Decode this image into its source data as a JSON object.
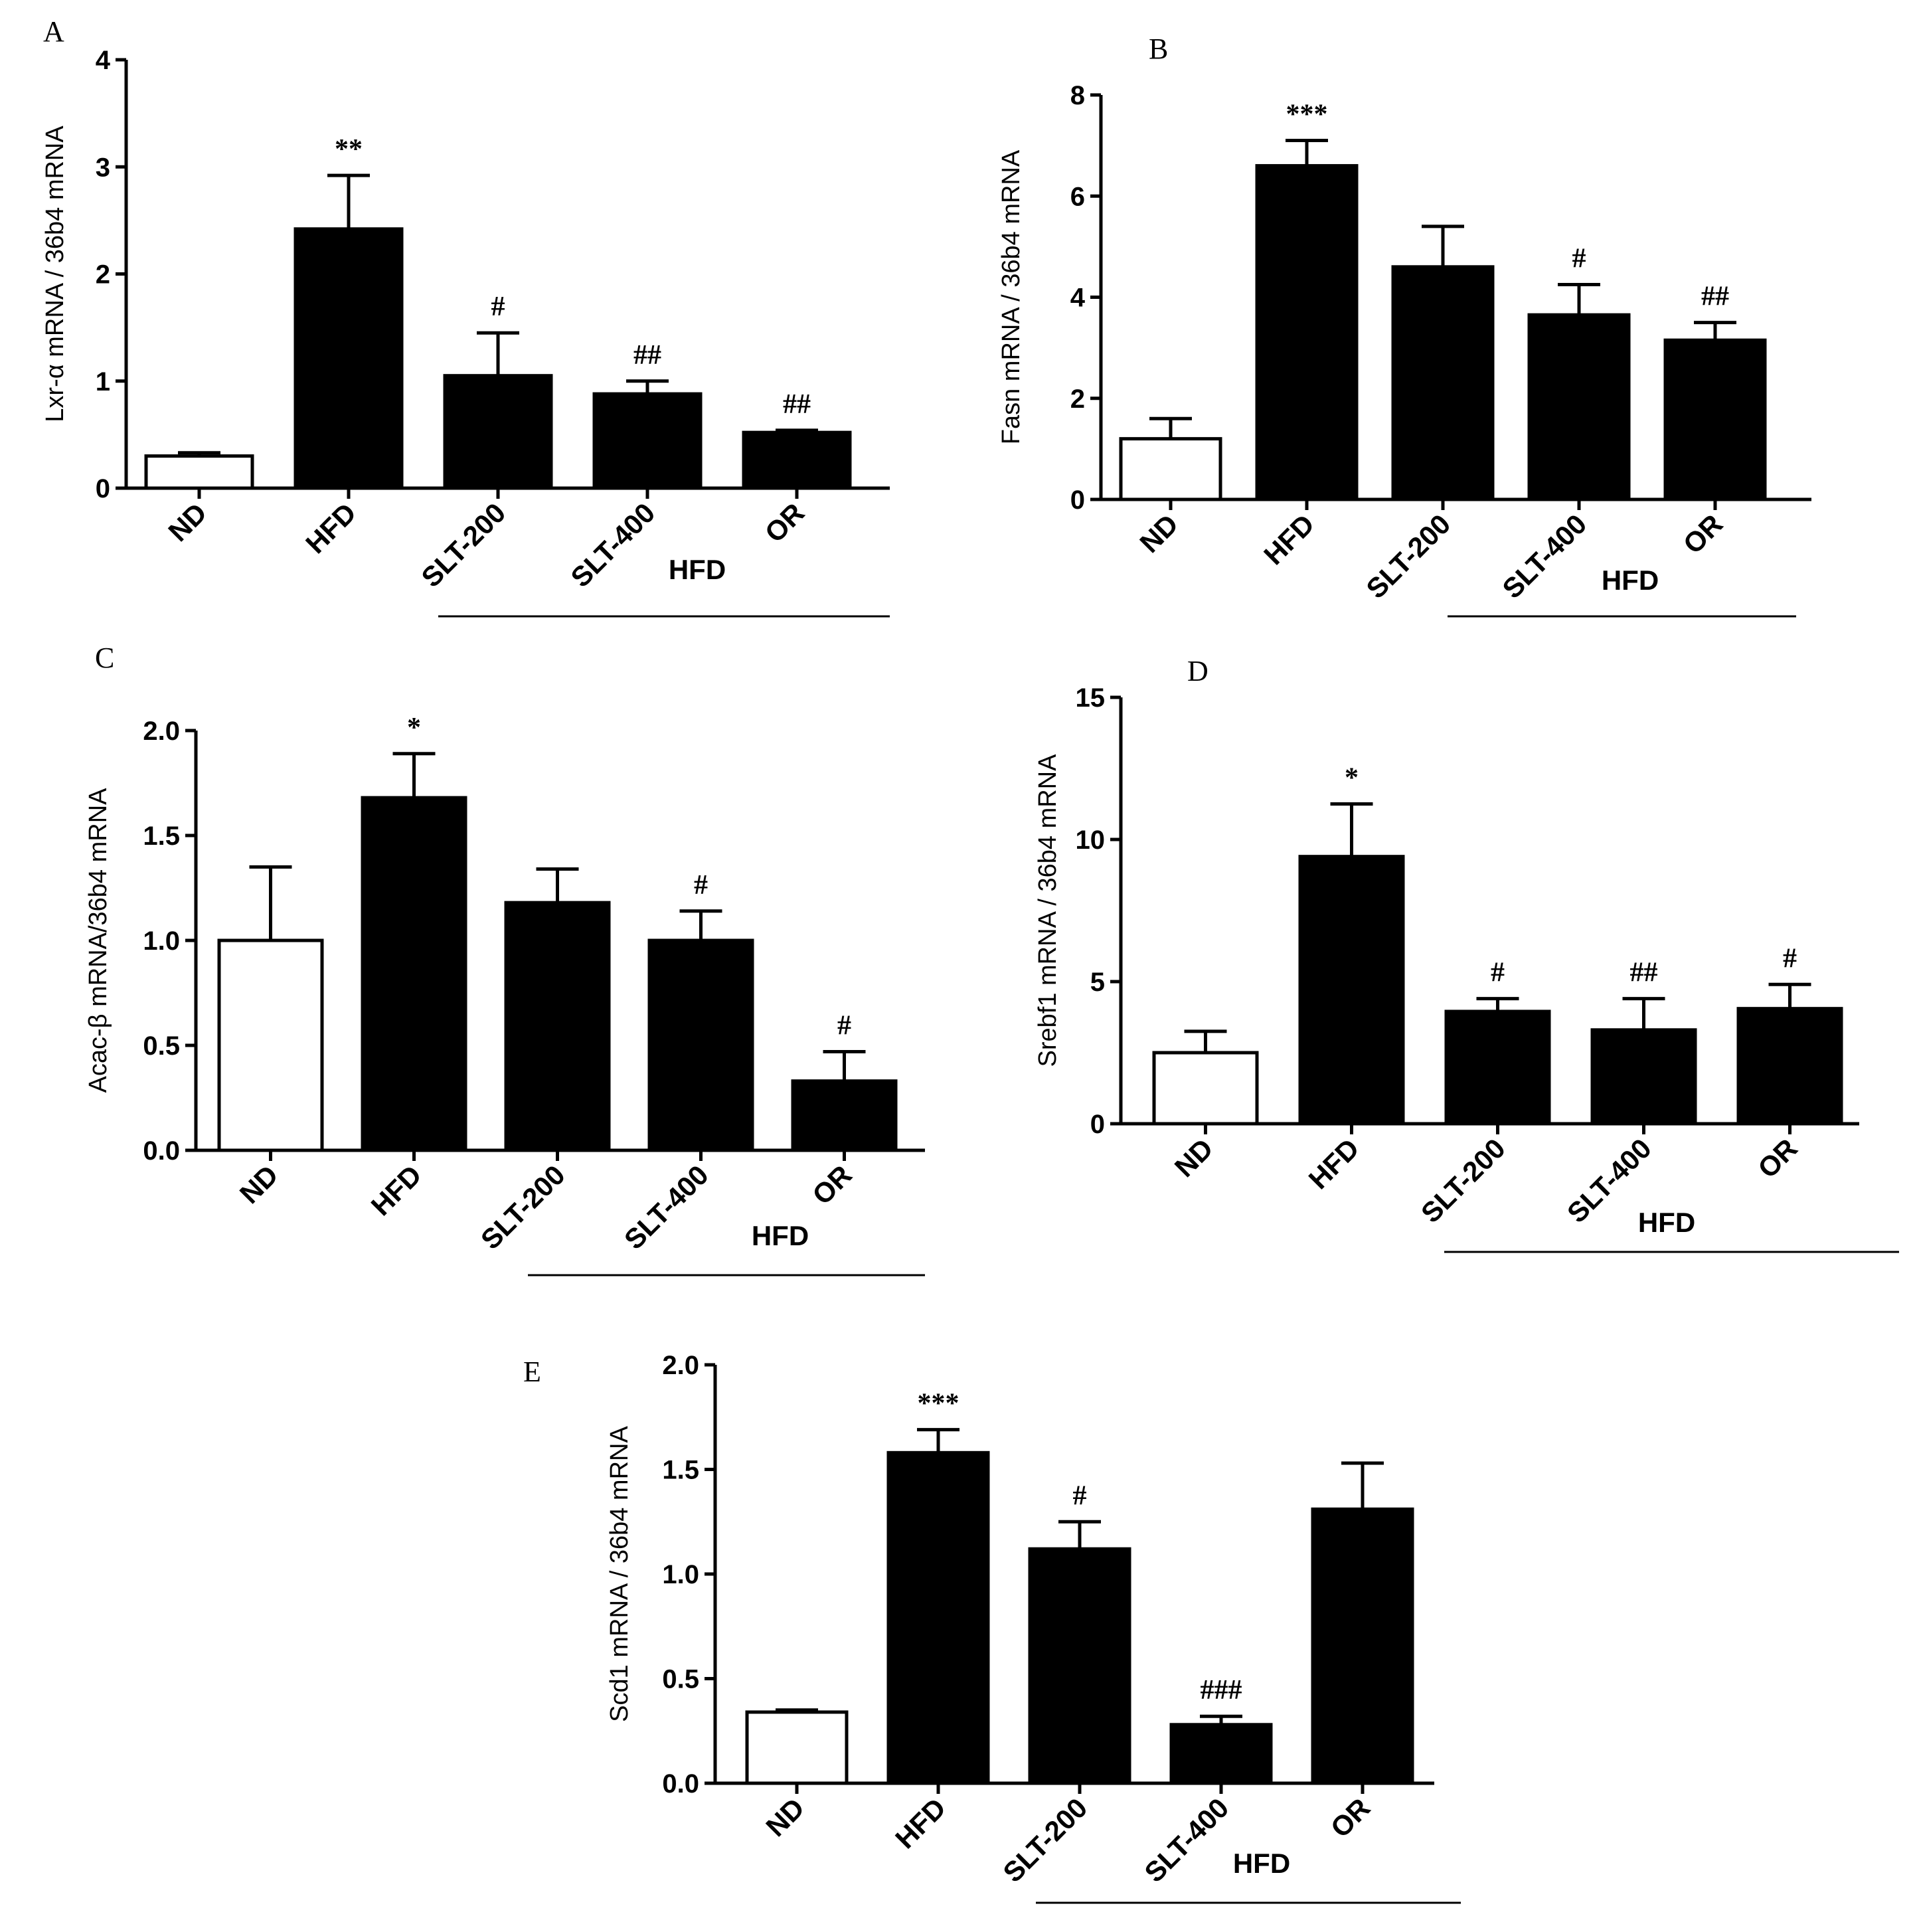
{
  "chart_data": [
    {
      "panel": "A",
      "type": "bar",
      "categories": [
        "ND",
        "HFD",
        "SLT-200",
        "SLT-400",
        "OR"
      ],
      "values": [
        0.3,
        2.42,
        1.05,
        0.88,
        0.52
      ],
      "errors": [
        0.03,
        0.5,
        0.4,
        0.12,
        0.02
      ],
      "significance": [
        "",
        "**",
        "#",
        "##",
        "##"
      ],
      "fills": [
        "#ffffff",
        "#000000",
        "#000000",
        "#000000",
        "#000000"
      ],
      "ylabel": "Lxr-α mRNA / 36b4 mRNA",
      "ylim": [
        0,
        4
      ],
      "yticks": [
        0,
        1,
        2,
        3,
        4
      ],
      "ytick_labels": [
        "0",
        "1",
        "2",
        "3",
        "4"
      ],
      "group_label": "HFD",
      "grid": false
    },
    {
      "panel": "B",
      "type": "bar",
      "categories": [
        "ND",
        "HFD",
        "SLT-200",
        "SLT-400",
        "OR"
      ],
      "values": [
        1.2,
        6.6,
        4.6,
        3.65,
        3.15
      ],
      "errors": [
        0.4,
        0.5,
        0.8,
        0.6,
        0.35
      ],
      "significance": [
        "",
        "***",
        "",
        "#",
        "##"
      ],
      "fills": [
        "#ffffff",
        "#000000",
        "#000000",
        "#000000",
        "#000000"
      ],
      "ylabel": "Fasn mRNA / 36b4 mRNA",
      "ylim": [
        0,
        8
      ],
      "yticks": [
        0,
        2,
        4,
        6,
        8
      ],
      "ytick_labels": [
        "0",
        "2",
        "4",
        "6",
        "8"
      ],
      "group_label": "HFD",
      "grid": false
    },
    {
      "panel": "C",
      "type": "bar",
      "categories": [
        "ND",
        "HFD",
        "SLT-200",
        "SLT-400",
        "OR"
      ],
      "values": [
        1.0,
        1.68,
        1.18,
        1.0,
        0.33
      ],
      "errors": [
        0.35,
        0.21,
        0.16,
        0.14,
        0.14
      ],
      "significance": [
        "",
        "*",
        "",
        "#",
        "#"
      ],
      "fills": [
        "#ffffff",
        "#000000",
        "#000000",
        "#000000",
        "#000000"
      ],
      "ylabel": "Acac-β mRNA/36b4 mRNA",
      "ylim": [
        0,
        2
      ],
      "yticks": [
        0,
        0.5,
        1,
        1.5,
        2
      ],
      "ytick_labels": [
        "0.0",
        "0.5",
        "1.0",
        "1.5",
        "2.0"
      ],
      "group_label": "HFD",
      "grid": false
    },
    {
      "panel": "D",
      "type": "bar",
      "categories": [
        "ND",
        "HFD",
        "SLT-200",
        "SLT-400",
        "OR"
      ],
      "values": [
        2.5,
        9.4,
        3.95,
        3.3,
        4.05
      ],
      "errors": [
        0.75,
        1.85,
        0.45,
        1.1,
        0.85
      ],
      "significance": [
        "",
        "*",
        "#",
        "##",
        "#"
      ],
      "fills": [
        "#ffffff",
        "#000000",
        "#000000",
        "#000000",
        "#000000"
      ],
      "ylabel": "Srebf1 mRNA / 36b4 mRNA",
      "ylim": [
        0,
        15
      ],
      "yticks": [
        0,
        5,
        10,
        15
      ],
      "ytick_labels": [
        "0",
        "5",
        "10",
        "15"
      ],
      "group_label": "HFD",
      "grid": false
    },
    {
      "panel": "E",
      "type": "bar",
      "categories": [
        "ND",
        "HFD",
        "SLT-200",
        "SLT-400",
        "OR"
      ],
      "values": [
        0.34,
        1.58,
        1.12,
        0.28,
        1.31
      ],
      "errors": [
        0.01,
        0.11,
        0.13,
        0.04,
        0.22
      ],
      "significance": [
        "",
        "***",
        "#",
        "###",
        ""
      ],
      "fills": [
        "#ffffff",
        "#000000",
        "#000000",
        "#000000",
        "#000000"
      ],
      "ylabel": "Scd1 mRNA / 36b4 mRNA",
      "ylim": [
        0,
        2
      ],
      "yticks": [
        0,
        0.5,
        1,
        1.5,
        2
      ],
      "ytick_labels": [
        "0.0",
        "0.5",
        "1.0",
        "1.5",
        "2.0"
      ],
      "group_label": "HFD",
      "grid": false
    }
  ]
}
